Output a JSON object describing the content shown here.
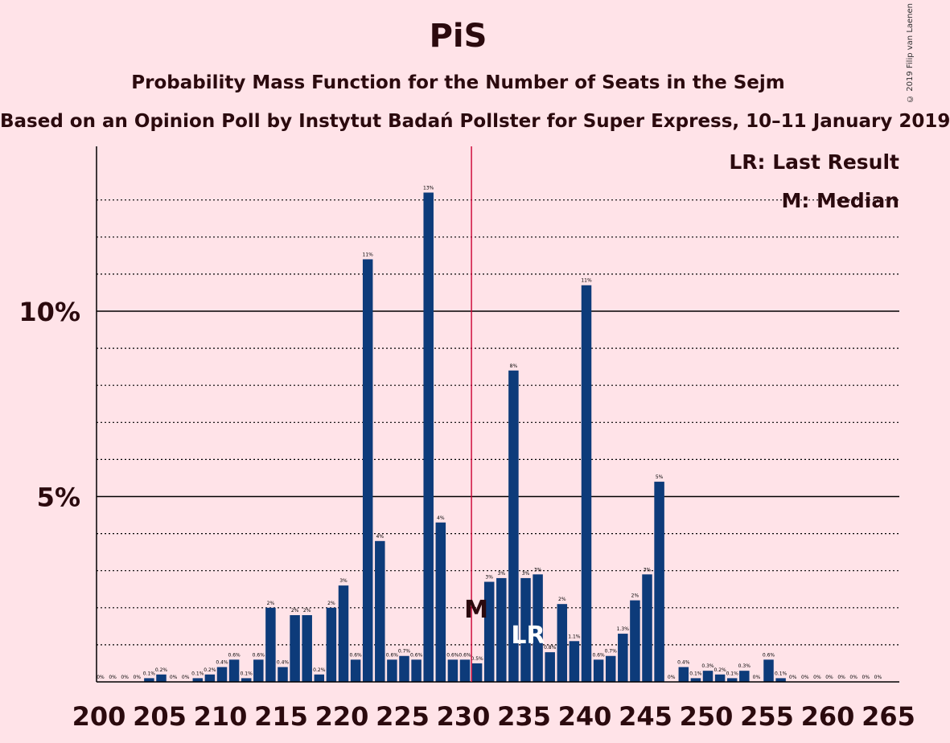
{
  "title": "PiS",
  "subtitle": "Probability Mass Function for the Number of Seats in the Sejm",
  "subtitle2": "Based on an Opinion Poll by Instytut Badań Pollster for Super Express, 10–11 January 2019",
  "copyright": "© 2019 Filip van Laenen",
  "colors": {
    "background": "#ffe3e8",
    "bar": "#0d3b7a",
    "median_line": "#cc0033",
    "text": "#2b0a0e"
  },
  "chart_data": {
    "type": "bar",
    "x_ticks": [
      "200",
      "205",
      "210",
      "215",
      "220",
      "225",
      "230",
      "235",
      "240",
      "245",
      "250",
      "255",
      "260",
      "265"
    ],
    "y_ticks": [
      "5%",
      "10%"
    ],
    "ylim": [
      0,
      14.4
    ],
    "xlim": [
      200,
      265
    ],
    "legend": [
      "LR: Last Result",
      "M: Median"
    ],
    "median": 231,
    "median_marker": "M",
    "last_result": 235,
    "last_result_marker": "LR",
    "categories": [
      200,
      201,
      202,
      203,
      204,
      205,
      206,
      207,
      208,
      209,
      210,
      211,
      212,
      213,
      214,
      215,
      216,
      217,
      218,
      219,
      220,
      221,
      222,
      223,
      224,
      225,
      226,
      227,
      228,
      229,
      230,
      231,
      232,
      233,
      234,
      235,
      236,
      237,
      238,
      239,
      240,
      241,
      242,
      243,
      244,
      245,
      246,
      247,
      248,
      249,
      250,
      251,
      252,
      253,
      254,
      255,
      256,
      257,
      258,
      259,
      260,
      261,
      262,
      263,
      264
    ],
    "values": [
      0,
      0,
      0,
      0,
      0.1,
      0.2,
      0,
      0,
      0.1,
      0.2,
      0.4,
      0.6,
      0.1,
      0.6,
      2.0,
      0.4,
      1.8,
      1.8,
      0.2,
      2.0,
      2.6,
      0.6,
      11.4,
      3.8,
      0.6,
      0.7,
      0.6,
      13.2,
      4.3,
      0.6,
      0.6,
      0.5,
      2.7,
      2.8,
      8.4,
      2.8,
      2.9,
      0.8,
      2.1,
      1.1,
      10.7,
      0.6,
      0.7,
      1.3,
      2.2,
      2.9,
      5.4,
      0,
      0.4,
      0.1,
      0.3,
      0.2,
      0.1,
      0.3,
      0,
      0.6,
      0.1,
      0,
      0,
      0,
      0,
      0,
      0,
      0,
      0
    ],
    "labels": [
      "0%",
      "0%",
      "0%",
      "0%",
      "0.1%",
      "0.2%",
      "0%",
      "0%",
      "0.1%",
      "0.2%",
      "0.4%",
      "0.6%",
      "0.1%",
      "0.6%",
      "2%",
      "0.4%",
      "2%",
      "2%",
      "0.2%",
      "2%",
      "3%",
      "0.6%",
      "11%",
      "4%",
      "0.6%",
      "0.7%",
      "0.6%",
      "13%",
      "4%",
      "0.6%",
      "0.6%",
      "0.5%",
      "3%",
      "3%",
      "8%",
      "3%",
      "3%",
      "0.8%",
      "2%",
      "1.1%",
      "11%",
      "0.6%",
      "0.7%",
      "1.3%",
      "2%",
      "3%",
      "5%",
      "0%",
      "0.4%",
      "0.1%",
      "0.3%",
      "0.2%",
      "0.1%",
      "0.3%",
      "0%",
      "0.6%",
      "0.1%",
      "0%",
      "0%",
      "0%",
      "0%",
      "0%",
      "0%",
      "0%",
      "0%"
    ]
  }
}
